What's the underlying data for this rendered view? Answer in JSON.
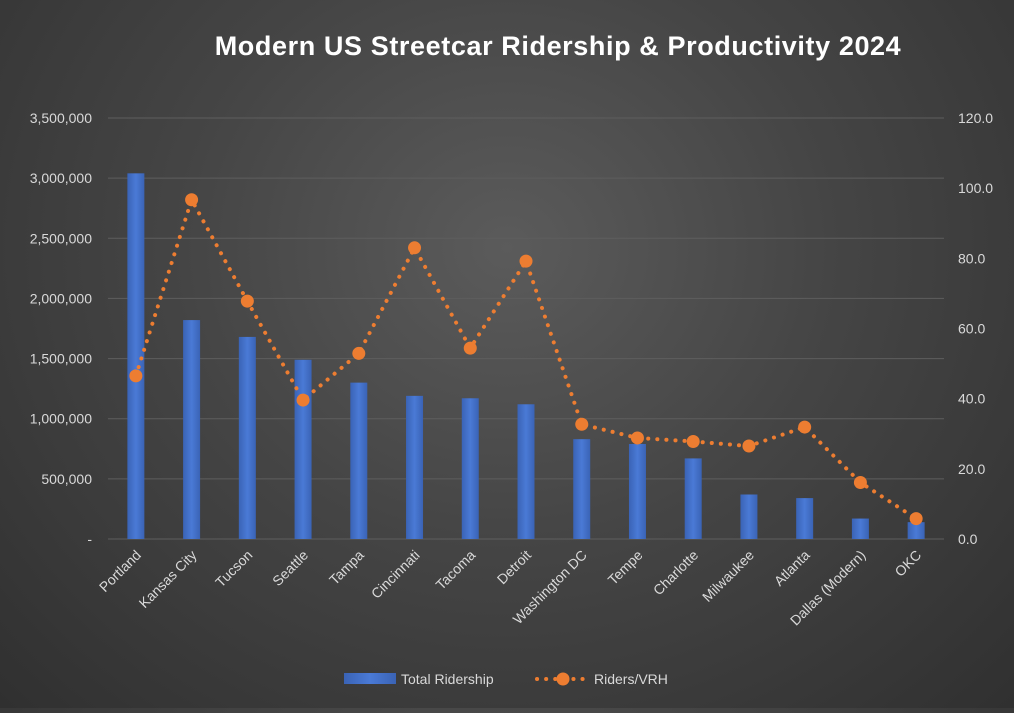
{
  "chart_data": {
    "type": "bar",
    "title": "Modern US Streetcar Ridership & Productivity 2024",
    "categories": [
      "Portland",
      "Kansas City",
      "Tucson",
      "Seattle",
      "Tampa",
      "Cincinnati",
      "Tacoma",
      "Detroit",
      "Washington DC",
      "Tempe",
      "Charlotte",
      "Milwaukee",
      "Atlanta",
      "Dallas (Modern)",
      "OKC"
    ],
    "series": [
      {
        "name": "Total Ridership",
        "type": "bar",
        "axis": "left",
        "color": "#4472C4",
        "values": [
          3040000,
          1820000,
          1680000,
          1490000,
          1300000,
          1190000,
          1170000,
          1120000,
          830000,
          790000,
          670000,
          370000,
          340000,
          170000,
          140000
        ]
      },
      {
        "name": "Riders/VRH",
        "type": "line",
        "axis": "right",
        "color": "#ED7D31",
        "line_style": "dotted",
        "marker": "circle",
        "values": [
          46.5,
          96.7,
          67.8,
          39.6,
          52.9,
          83.0,
          54.4,
          79.2,
          32.7,
          28.8,
          27.8,
          26.5,
          31.9,
          16.1,
          5.8
        ]
      }
    ],
    "y_left": {
      "min": 0,
      "max": 3500000,
      "ticks": [
        0,
        500000,
        1000000,
        1500000,
        2000000,
        2500000,
        3000000,
        3500000
      ],
      "tick_labels": [
        "-",
        "500,000",
        "1,000,000",
        "1,500,000",
        "2,000,000",
        "2,500,000",
        "3,000,000",
        "3,500,000"
      ]
    },
    "y_right": {
      "min": 0,
      "max": 120,
      "ticks": [
        0,
        20,
        40,
        60,
        80,
        100,
        120
      ],
      "tick_labels": [
        "0.0",
        "20.0",
        "40.0",
        "60.0",
        "80.0",
        "100.0",
        "120.0"
      ]
    },
    "grid": true,
    "legend_position": "bottom",
    "colors": {
      "gridline": "#5e5e5e",
      "text": "#d9d9d9",
      "title": "#ffffff"
    }
  }
}
